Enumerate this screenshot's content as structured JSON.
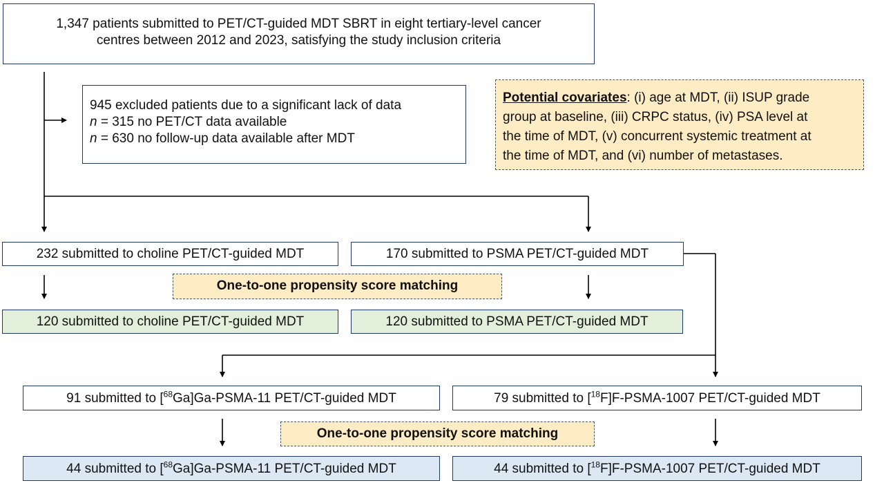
{
  "top": {
    "line1": "1,347 patients submitted to PET/CT-guided MDT SBRT in eight tertiary-level cancer",
    "line2": "centres between 2012 and 2023, satisfying the study inclusion criteria"
  },
  "excluded": {
    "line1": "945 excluded patients due to a significant lack of data",
    "n_label": "n",
    "line2_rest": " = 315 no PET/CT data available",
    "line3_rest": " = 630 no follow-up data available after MDT"
  },
  "covariates": {
    "heading": "Potential covariates",
    "line1_rest": ": (i) age at MDT, (ii) ISUP grade",
    "line2": "group at baseline, (iii) CRPC status, (iv) PSA level at",
    "line3": "the time of MDT, (v) concurrent systemic treatment at",
    "line4": "the time of MDT, and (vi) number of metastases."
  },
  "choline": {
    "label": "232 submitted to choline PET/CT-guided MDT"
  },
  "psma": {
    "label": "170 submitted to PSMA PET/CT-guided MDT"
  },
  "matching1": {
    "label": "One-to-one propensity score matching"
  },
  "choline_matched": {
    "label": "120 submitted to choline PET/CT-guided MDT"
  },
  "psma_matched": {
    "label": "120 submitted to PSMA PET/CT-guided MDT"
  },
  "ga": {
    "prefix": "91 submitted to [",
    "sup": "68",
    "suffix": "Ga]Ga-PSMA-11 PET/CT-guided MDT"
  },
  "f": {
    "prefix": "79 submitted to [",
    "sup": "18",
    "suffix": "F]F-PSMA-1007 PET/CT-guided MDT"
  },
  "matching2": {
    "label": "One-to-one propensity score matching"
  },
  "ga_matched": {
    "prefix": "44 submitted to [",
    "sup": "68",
    "suffix": "Ga]Ga-PSMA-11 PET/CT-guided MDT"
  },
  "f_matched": {
    "prefix": "44 submitted to [",
    "sup": "18",
    "suffix": "F]F-PSMA-1007 PET/CT-guided MDT"
  },
  "colors": {
    "border": "#1f3864",
    "green_fill": "#e2efda",
    "blue_fill": "#dde8f5",
    "tan_fill": "#fdecc4",
    "line": "#000000"
  }
}
